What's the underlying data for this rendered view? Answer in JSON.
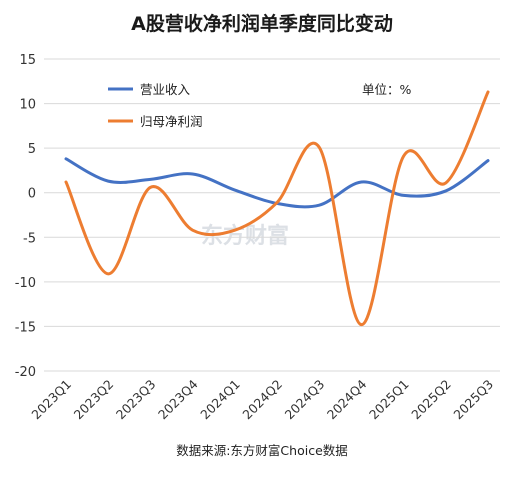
{
  "chart_data": {
    "type": "line",
    "title": "A股营收净利润单季度同比变动",
    "unit_label": "单位：%",
    "source": "数据来源:东方财富Choice数据",
    "watermark": "东方财富",
    "categories": [
      "2023Q1",
      "2023Q2",
      "2023Q3",
      "2023Q4",
      "2024Q1",
      "2024Q2",
      "2024Q3",
      "2024Q4",
      "2025Q1",
      "2025Q2",
      "2025Q3"
    ],
    "ylim": [
      -20,
      15
    ],
    "yticks": [
      15,
      10,
      5,
      0,
      -5,
      -10,
      -15,
      -20
    ],
    "grid": true,
    "legend_position": "top-left",
    "series": [
      {
        "name": "营业收入",
        "color": "#4472c4",
        "values": [
          3.8,
          1.3,
          1.5,
          2.1,
          0.3,
          -1.2,
          -1.4,
          1.2,
          -0.3,
          0.2,
          3.6
        ]
      },
      {
        "name": "归母净利润",
        "color": "#ed7d31",
        "values": [
          1.2,
          -9.1,
          0.6,
          -4.2,
          -4.2,
          -1.1,
          5.1,
          -14.8,
          4.1,
          1.1,
          11.3
        ]
      }
    ]
  }
}
